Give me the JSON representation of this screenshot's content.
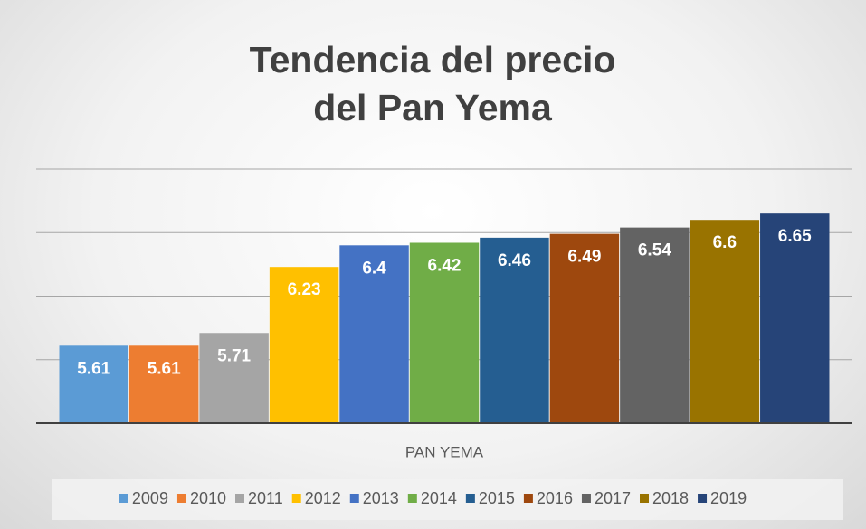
{
  "chart_data": {
    "type": "bar",
    "title": "Tendencia del precio del Pan Yema",
    "categories": [
      "PAN YEMA"
    ],
    "series": [
      {
        "name": "2009",
        "color": "#5b9bd5",
        "values": [
          5.61
        ]
      },
      {
        "name": "2010",
        "color": "#ed7d31",
        "values": [
          5.61
        ]
      },
      {
        "name": "2011",
        "color": "#a5a5a5",
        "values": [
          5.71
        ]
      },
      {
        "name": "2012",
        "color": "#ffc000",
        "values": [
          6.23
        ]
      },
      {
        "name": "2013",
        "color": "#4472c4",
        "values": [
          6.4
        ]
      },
      {
        "name": "2014",
        "color": "#70ad47",
        "values": [
          6.42
        ]
      },
      {
        "name": "2015",
        "color": "#255e91",
        "values": [
          6.46
        ]
      },
      {
        "name": "2016",
        "color": "#9e480e",
        "values": [
          6.49
        ]
      },
      {
        "name": "2017",
        "color": "#636363",
        "values": [
          6.54
        ]
      },
      {
        "name": "2018",
        "color": "#997300",
        "values": [
          6.6
        ]
      },
      {
        "name": "2019",
        "color": "#264478",
        "values": [
          6.65
        ]
      }
    ],
    "ylim": [
      5,
      7
    ],
    "yticks": [
      5.5,
      6,
      6.5,
      7
    ],
    "grid": true,
    "legend": "bottom"
  }
}
